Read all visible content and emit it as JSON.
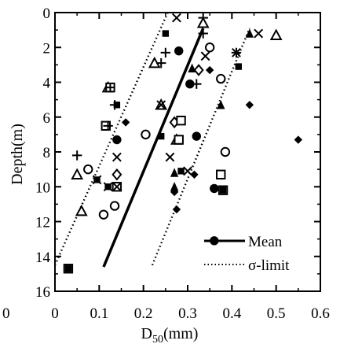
{
  "chart_data": {
    "type": "scatter",
    "xlabel": "D",
    "xlabel_sub": "50",
    "xlabel_unit": "(mm)",
    "ylabel": "Depth(m)",
    "xlim": [
      0,
      0.6
    ],
    "ylim": [
      0,
      16
    ],
    "y_inverted": true,
    "x_ticks": [
      0,
      0.1,
      0.2,
      0.3,
      0.4,
      0.5,
      0.6
    ],
    "y_ticks": [
      0,
      2,
      4,
      6,
      8,
      10,
      12,
      14,
      16
    ],
    "stray_tick_label": "0",
    "legend": {
      "position": "bottom-right",
      "entries": [
        {
          "label": "Mean",
          "style": "solid"
        },
        {
          "label": "σ-limit",
          "style": "dotted"
        }
      ]
    },
    "lines": [
      {
        "label": "Mean",
        "style": "solid",
        "x": [
          0.11,
          0.335
        ],
        "y": [
          14.6,
          0.9
        ]
      },
      {
        "label": "σ-limit",
        "style": "dotted",
        "x": [
          0.0,
          0.255
        ],
        "y": [
          14.5,
          0.0
        ]
      },
      {
        "label": "σ-limit",
        "style": "dotted",
        "x": [
          0.22,
          0.44
        ],
        "y": [
          14.5,
          0.9
        ]
      }
    ],
    "points": [
      {
        "m": "square_open",
        "x": 0.03,
        "y": 14.7
      },
      {
        "m": "square_filled",
        "x": 0.03,
        "y": 14.7
      },
      {
        "m": "circle_filled",
        "x": 0.36,
        "y": 13.1
      },
      {
        "m": "x",
        "x": 0.275,
        "y": 0.3
      },
      {
        "m": "plus",
        "x": 0.335,
        "y": 0.3
      },
      {
        "m": "tri_open",
        "x": 0.335,
        "y": 0.6
      },
      {
        "m": "plus",
        "x": 0.335,
        "y": 1.2
      },
      {
        "m": "square_filled",
        "x": 0.25,
        "y": 1.2
      },
      {
        "m": "tri_filled",
        "x": 0.44,
        "y": 1.2
      },
      {
        "m": "x",
        "x": 0.46,
        "y": 1.2
      },
      {
        "m": "tri_open",
        "x": 0.5,
        "y": 1.3
      },
      {
        "m": "circle_open",
        "x": 0.35,
        "y": 2.0
      },
      {
        "m": "circle_filled",
        "x": 0.28,
        "y": 2.2
      },
      {
        "m": "plus",
        "x": 0.25,
        "y": 2.3
      },
      {
        "m": "star",
        "x": 0.41,
        "y": 2.3
      },
      {
        "m": "x",
        "x": 0.34,
        "y": 2.5
      },
      {
        "m": "tri_open",
        "x": 0.225,
        "y": 2.9
      },
      {
        "m": "plus",
        "x": 0.24,
        "y": 2.9
      },
      {
        "m": "square_filled",
        "x": 0.415,
        "y": 3.1
      },
      {
        "m": "tri_filled",
        "x": 0.31,
        "y": 3.2
      },
      {
        "m": "diamond_open",
        "x": 0.325,
        "y": 3.3
      },
      {
        "m": "diamond_filled",
        "x": 0.35,
        "y": 3.3
      },
      {
        "m": "circle_open",
        "x": 0.375,
        "y": 3.8
      },
      {
        "m": "circle_filled",
        "x": 0.305,
        "y": 4.1
      },
      {
        "m": "plus",
        "x": 0.32,
        "y": 4.1
      },
      {
        "m": "tri_open",
        "x": 0.12,
        "y": 4.3
      },
      {
        "m": "square_open",
        "x": 0.125,
        "y": 4.3
      },
      {
        "m": "plus",
        "x": 0.125,
        "y": 4.3
      },
      {
        "m": "square_filled",
        "x": 0.14,
        "y": 5.3
      },
      {
        "m": "plus",
        "x": 0.135,
        "y": 5.3
      },
      {
        "m": "tri_open",
        "x": 0.24,
        "y": 5.3
      },
      {
        "m": "x",
        "x": 0.24,
        "y": 5.3
      },
      {
        "m": "tri_filled",
        "x": 0.375,
        "y": 5.3
      },
      {
        "m": "diamond_filled",
        "x": 0.44,
        "y": 5.3
      },
      {
        "m": "square_open",
        "x": 0.115,
        "y": 6.5
      },
      {
        "m": "plus",
        "x": 0.12,
        "y": 6.5
      },
      {
        "m": "diamond_filled",
        "x": 0.16,
        "y": 6.3
      },
      {
        "m": "diamond_open",
        "x": 0.27,
        "y": 6.3
      },
      {
        "m": "square_open",
        "x": 0.285,
        "y": 6.2
      },
      {
        "m": "circle_open",
        "x": 0.205,
        "y": 7.0
      },
      {
        "m": "square_filled",
        "x": 0.24,
        "y": 7.1
      },
      {
        "m": "tri_open",
        "x": 0.275,
        "y": 7.3
      },
      {
        "m": "square_open",
        "x": 0.28,
        "y": 7.3
      },
      {
        "m": "circle_filled",
        "x": 0.32,
        "y": 7.1
      },
      {
        "m": "circle_filled",
        "x": 0.14,
        "y": 7.3
      },
      {
        "m": "diamond_filled",
        "x": 0.55,
        "y": 7.3
      },
      {
        "m": "circle_open",
        "x": 0.385,
        "y": 8.0
      },
      {
        "m": "x",
        "x": 0.26,
        "y": 8.3
      },
      {
        "m": "plus",
        "x": 0.05,
        "y": 8.2
      },
      {
        "m": "x",
        "x": 0.14,
        "y": 8.3
      },
      {
        "m": "circle_open",
        "x": 0.075,
        "y": 9.0
      },
      {
        "m": "tri_open",
        "x": 0.05,
        "y": 9.3
      },
      {
        "m": "diamond_open",
        "x": 0.14,
        "y": 9.3
      },
      {
        "m": "square_filled",
        "x": 0.095,
        "y": 9.6
      },
      {
        "m": "x",
        "x": 0.095,
        "y": 9.6
      },
      {
        "m": "tri_filled",
        "x": 0.27,
        "y": 9.2
      },
      {
        "m": "square_filled",
        "x": 0.285,
        "y": 9.1
      },
      {
        "m": "x",
        "x": 0.3,
        "y": 9.1
      },
      {
        "m": "diamond_filled",
        "x": 0.315,
        "y": 9.3
      },
      {
        "m": "square_open",
        "x": 0.375,
        "y": 9.3
      },
      {
        "m": "square_filled",
        "x": 0.12,
        "y": 10.0
      },
      {
        "m": "x",
        "x": 0.12,
        "y": 10.0
      },
      {
        "m": "square_open",
        "x": 0.14,
        "y": 10.0
      },
      {
        "m": "x",
        "x": 0.14,
        "y": 10.0
      },
      {
        "m": "diamond_filled",
        "x": 0.27,
        "y": 10.3
      },
      {
        "m": "tri_filled",
        "x": 0.27,
        "y": 10.0
      },
      {
        "m": "circle_filled",
        "x": 0.36,
        "y": 10.1
      },
      {
        "m": "square_open",
        "x": 0.38,
        "y": 10.2
      },
      {
        "m": "square_filled",
        "x": 0.38,
        "y": 10.2
      },
      {
        "m": "circle_open",
        "x": 0.135,
        "y": 11.1
      },
      {
        "m": "circle_open",
        "x": 0.11,
        "y": 11.6
      },
      {
        "m": "tri_open",
        "x": 0.06,
        "y": 11.4
      },
      {
        "m": "diamond_filled",
        "x": 0.275,
        "y": 11.3
      }
    ]
  }
}
